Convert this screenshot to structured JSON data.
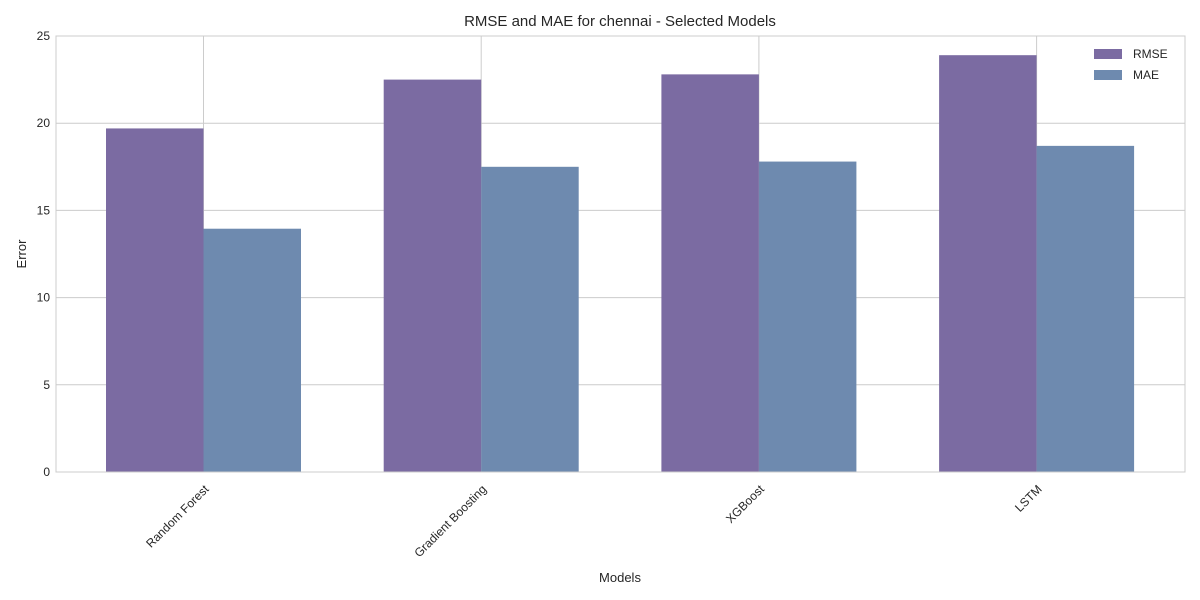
{
  "chart_data": {
    "type": "bar",
    "title": "RMSE and MAE for chennai - Selected Models",
    "xlabel": "Models",
    "ylabel": "Error",
    "categories": [
      "Random Forest",
      "Gradient Boosting",
      "XGBoost",
      "LSTM"
    ],
    "series": [
      {
        "name": "RMSE",
        "values": [
          19.7,
          22.5,
          22.8,
          23.9
        ],
        "color": "#7b6ba2"
      },
      {
        "name": "MAE",
        "values": [
          13.95,
          17.5,
          17.8,
          18.7
        ],
        "color": "#6e8aaf"
      }
    ],
    "ylim": [
      0,
      25
    ],
    "yticks": [
      0,
      5,
      10,
      15,
      20,
      25
    ],
    "grid": true,
    "legend": "top-right"
  }
}
